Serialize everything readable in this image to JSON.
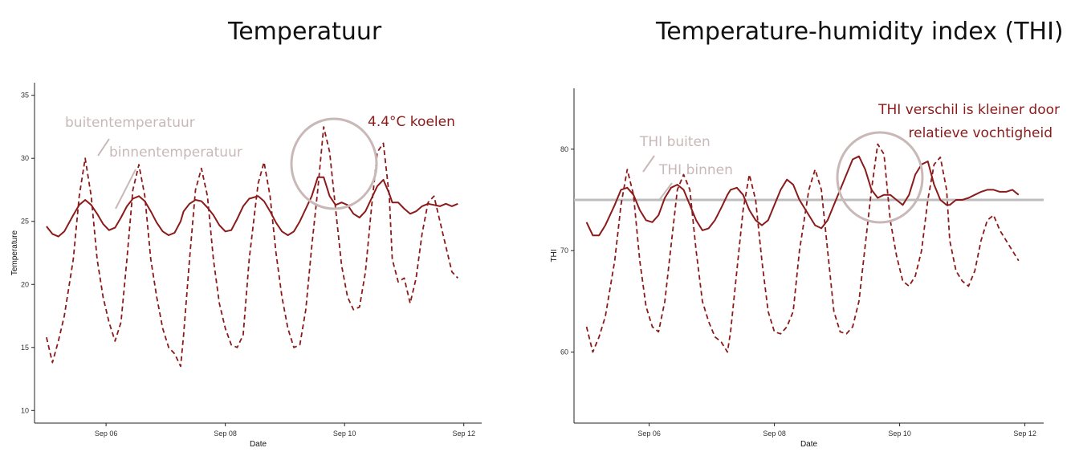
{
  "titles": {
    "left": "Temperatuur",
    "right": "Temperature-humidity index (THI)"
  },
  "colors": {
    "series": "#8b1a1a",
    "annotation_grey": "#c9b8b8",
    "callout": "#8b1a1a"
  },
  "chart_data": [
    {
      "type": "line",
      "title": "Temperatuur",
      "xlabel": "Date",
      "ylabel": "Temperature",
      "xlim": [
        4.8,
        12.3
      ],
      "ylim": [
        9,
        36
      ],
      "x_ticks": [
        {
          "v": 6,
          "label": "Sep 06"
        },
        {
          "v": 8,
          "label": "Sep 08"
        },
        {
          "v": 10,
          "label": "Sep 10"
        },
        {
          "v": 12,
          "label": "Sep 12"
        }
      ],
      "y_ticks": [
        10,
        15,
        20,
        25,
        30,
        35
      ],
      "grid": false,
      "series": [
        {
          "style": "dashed",
          "x": [
            5.0,
            5.1,
            5.2,
            5.3,
            5.45,
            5.55,
            5.65,
            5.75,
            5.85,
            5.95,
            6.05,
            6.15,
            6.25,
            6.35,
            6.45,
            6.55,
            6.65,
            6.75,
            6.85,
            6.95,
            7.05,
            7.15,
            7.25,
            7.3,
            7.4,
            7.5,
            7.6,
            7.7,
            7.8,
            7.9,
            8.0,
            8.1,
            8.2,
            8.3,
            8.4,
            8.55,
            8.65,
            8.75,
            8.85,
            8.95,
            9.05,
            9.15,
            9.25,
            9.35,
            9.45,
            9.55,
            9.65,
            9.75,
            9.85,
            9.95,
            10.05,
            10.15,
            10.25,
            10.35,
            10.45,
            10.55,
            10.65,
            10.75,
            10.8,
            10.9,
            11.0,
            11.1,
            11.2,
            11.3,
            11.4,
            11.5,
            11.6,
            11.7,
            11.8,
            11.9
          ],
          "y": [
            15.8,
            13.8,
            15.5,
            17.5,
            22,
            27,
            30,
            27,
            22,
            19,
            17,
            15.5,
            17,
            22,
            27.5,
            29.5,
            27,
            22,
            19,
            16.5,
            15,
            14.5,
            13.5,
            16,
            22,
            27.5,
            29.2,
            27,
            22,
            18.5,
            16.5,
            15.2,
            15,
            16,
            22,
            28,
            29.7,
            27,
            22.5,
            19,
            16.5,
            15,
            15.2,
            18,
            23,
            27.5,
            32.5,
            30.5,
            26,
            21.5,
            19,
            18,
            18.2,
            21,
            26,
            30.5,
            31.2,
            27,
            22,
            20.2,
            20.5,
            18.5,
            20.5,
            24,
            26.5,
            27,
            25,
            23,
            21,
            20.5
          ]
        },
        {
          "style": "solid",
          "x": [
            5.0,
            5.1,
            5.2,
            5.3,
            5.45,
            5.55,
            5.65,
            5.75,
            5.85,
            5.95,
            6.05,
            6.15,
            6.25,
            6.35,
            6.45,
            6.55,
            6.65,
            6.75,
            6.85,
            6.95,
            7.05,
            7.15,
            7.25,
            7.3,
            7.4,
            7.5,
            7.6,
            7.7,
            7.8,
            7.9,
            8.0,
            8.1,
            8.2,
            8.3,
            8.4,
            8.55,
            8.65,
            8.75,
            8.85,
            8.95,
            9.05,
            9.15,
            9.25,
            9.35,
            9.45,
            9.55,
            9.65,
            9.75,
            9.85,
            9.95,
            10.05,
            10.15,
            10.25,
            10.35,
            10.45,
            10.55,
            10.65,
            10.75,
            10.8,
            10.9,
            11.0,
            11.1,
            11.2,
            11.3,
            11.4,
            11.5,
            11.6,
            11.7,
            11.8,
            11.9
          ],
          "y": [
            24.6,
            24,
            23.8,
            24.2,
            25.5,
            26.3,
            26.7,
            26.3,
            25.6,
            24.8,
            24.3,
            24.5,
            25.3,
            26.2,
            26.8,
            27,
            26.6,
            25.8,
            24.9,
            24.2,
            23.9,
            24.1,
            25,
            25.8,
            26.4,
            26.7,
            26.6,
            26.1,
            25.5,
            24.7,
            24.2,
            24.3,
            25.2,
            26.2,
            26.8,
            27,
            26.6,
            25.8,
            24.9,
            24.2,
            23.9,
            24.2,
            25,
            26,
            27,
            28.5,
            28.5,
            27,
            26.3,
            26.5,
            26.3,
            25.6,
            25.3,
            25.8,
            26.8,
            27.8,
            28.3,
            27.2,
            26.5,
            26.5,
            26,
            25.6,
            25.8,
            26.2,
            26.4,
            26.3,
            26.2,
            26.4,
            26.2,
            26.4
          ]
        }
      ],
      "annotations": {
        "outside_label": "buitentemperatuur",
        "inside_label": "binnentemperatuur",
        "callout": "4.4°C koelen"
      }
    },
    {
      "type": "line",
      "title": "Temperature-humidity index (THI)",
      "xlabel": "Date",
      "ylabel": "THI",
      "xlim": [
        4.8,
        12.3
      ],
      "ylim": [
        53,
        86
      ],
      "x_ticks": [
        {
          "v": 6,
          "label": "Sep 06"
        },
        {
          "v": 8,
          "label": "Sep 08"
        },
        {
          "v": 10,
          "label": "Sep 10"
        },
        {
          "v": 12,
          "label": "Sep 12"
        }
      ],
      "y_ticks": [
        60,
        70,
        80
      ],
      "grid": false,
      "reference_line": 75,
      "series": [
        {
          "style": "dashed",
          "x": [
            5.0,
            5.1,
            5.2,
            5.3,
            5.45,
            5.55,
            5.65,
            5.75,
            5.85,
            5.95,
            6.05,
            6.15,
            6.25,
            6.35,
            6.45,
            6.55,
            6.65,
            6.75,
            6.85,
            6.95,
            7.05,
            7.15,
            7.25,
            7.3,
            7.4,
            7.5,
            7.6,
            7.7,
            7.8,
            7.9,
            8.0,
            8.1,
            8.2,
            8.3,
            8.4,
            8.55,
            8.65,
            8.75,
            8.85,
            8.95,
            9.05,
            9.15,
            9.25,
            9.35,
            9.45,
            9.55,
            9.65,
            9.75,
            9.85,
            9.95,
            10.05,
            10.15,
            10.25,
            10.35,
            10.45,
            10.55,
            10.65,
            10.75,
            10.8,
            10.9,
            11.0,
            11.1,
            11.2,
            11.3,
            11.4,
            11.5,
            11.6,
            11.7,
            11.8,
            11.9
          ],
          "y": [
            62.5,
            60,
            61.5,
            63.5,
            69,
            74.5,
            78,
            75.5,
            69,
            64.5,
            62.5,
            62,
            65,
            70.5,
            76,
            77.5,
            76,
            70,
            65,
            63,
            61.5,
            61,
            60,
            62,
            68,
            74,
            77.5,
            75,
            69,
            64,
            62,
            61.8,
            62.5,
            64,
            70,
            76,
            78,
            76,
            70,
            64,
            62,
            61.8,
            62.5,
            65,
            70.5,
            76,
            80.5,
            79.5,
            73,
            69.5,
            67,
            66.5,
            67.5,
            70,
            75,
            78.5,
            79.2,
            76,
            71,
            68,
            67,
            66.5,
            68,
            71,
            73,
            73.5,
            72,
            71,
            70,
            69
          ]
        },
        {
          "style": "solid",
          "x": [
            5.0,
            5.1,
            5.2,
            5.3,
            5.45,
            5.55,
            5.65,
            5.75,
            5.85,
            5.95,
            6.05,
            6.15,
            6.25,
            6.35,
            6.45,
            6.55,
            6.65,
            6.75,
            6.85,
            6.95,
            7.05,
            7.15,
            7.25,
            7.3,
            7.4,
            7.5,
            7.6,
            7.7,
            7.8,
            7.9,
            8.0,
            8.1,
            8.2,
            8.3,
            8.4,
            8.55,
            8.65,
            8.75,
            8.85,
            8.95,
            9.05,
            9.15,
            9.25,
            9.35,
            9.45,
            9.55,
            9.65,
            9.75,
            9.85,
            9.95,
            10.05,
            10.15,
            10.25,
            10.35,
            10.45,
            10.55,
            10.65,
            10.75,
            10.8,
            10.9,
            11.0,
            11.1,
            11.2,
            11.3,
            11.4,
            11.5,
            11.6,
            11.7,
            11.8,
            11.9
          ],
          "y": [
            72.8,
            71.5,
            71.5,
            72.5,
            74.5,
            76,
            76.2,
            75.5,
            74,
            73,
            72.8,
            73.5,
            75.2,
            76.2,
            76.5,
            76,
            74.5,
            73,
            72,
            72.2,
            73,
            74.2,
            75.5,
            76,
            76.2,
            75.5,
            74,
            73,
            72.5,
            73,
            74.5,
            76,
            77,
            76.5,
            75,
            73.5,
            72.5,
            72.2,
            73,
            74.5,
            76,
            77.5,
            79,
            79.3,
            78,
            76,
            75.2,
            75.5,
            75.5,
            75,
            74.5,
            75.5,
            77.5,
            78.5,
            78.8,
            76.5,
            75,
            74.5,
            74.5,
            75,
            75,
            75.2,
            75.5,
            75.8,
            76,
            76,
            75.8,
            75.8,
            76,
            75.5
          ]
        }
      ],
      "annotations": {
        "outside_label": "THI buiten",
        "inside_label": "THI binnen",
        "callout_line1": "THI verschil is kleiner door",
        "callout_line2": "relatieve vochtigheid"
      }
    }
  ]
}
